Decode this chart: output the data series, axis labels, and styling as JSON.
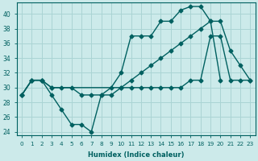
{
  "xlabel": "Humidex (Indice chaleur)",
  "bg_color": "#cceaea",
  "grid_color": "#aad4d4",
  "line_color": "#006060",
  "xlim": [
    -0.5,
    23.5
  ],
  "ylim": [
    23.5,
    41.5
  ],
  "yticks": [
    24,
    26,
    28,
    30,
    32,
    34,
    36,
    38,
    40
  ],
  "xticks": [
    0,
    1,
    2,
    3,
    4,
    5,
    6,
    7,
    8,
    9,
    10,
    11,
    12,
    13,
    14,
    15,
    16,
    17,
    18,
    19,
    20,
    21,
    22,
    23
  ],
  "series1_x": [
    0,
    1,
    2,
    3,
    4,
    5,
    6,
    7,
    8,
    9,
    10,
    11,
    12,
    13,
    14,
    15,
    16,
    17,
    18,
    19,
    20
  ],
  "series1_y": [
    29,
    31,
    31,
    29,
    27,
    25,
    25,
    24,
    29,
    30,
    32,
    37,
    37,
    37,
    39,
    39,
    40.5,
    41,
    41,
    39,
    31
  ],
  "series2_x": [
    0,
    1,
    2,
    3,
    10,
    11,
    12,
    13,
    14,
    15,
    16,
    17,
    18,
    19,
    20,
    21,
    22,
    23
  ],
  "series2_y": [
    29,
    31,
    31,
    30,
    30,
    31,
    32,
    33,
    34,
    35,
    36,
    37,
    38,
    39,
    39,
    35,
    33,
    31
  ],
  "series3_x": [
    0,
    1,
    2,
    3,
    4,
    5,
    6,
    7,
    8,
    9,
    10,
    11,
    12,
    13,
    14,
    15,
    16,
    17,
    18,
    19,
    20,
    21,
    22,
    23
  ],
  "series3_y": [
    29,
    31,
    31,
    30,
    30,
    30,
    29,
    29,
    29,
    29,
    30,
    30,
    30,
    30,
    30,
    30,
    30,
    31,
    31,
    37,
    37,
    31,
    31,
    31
  ]
}
